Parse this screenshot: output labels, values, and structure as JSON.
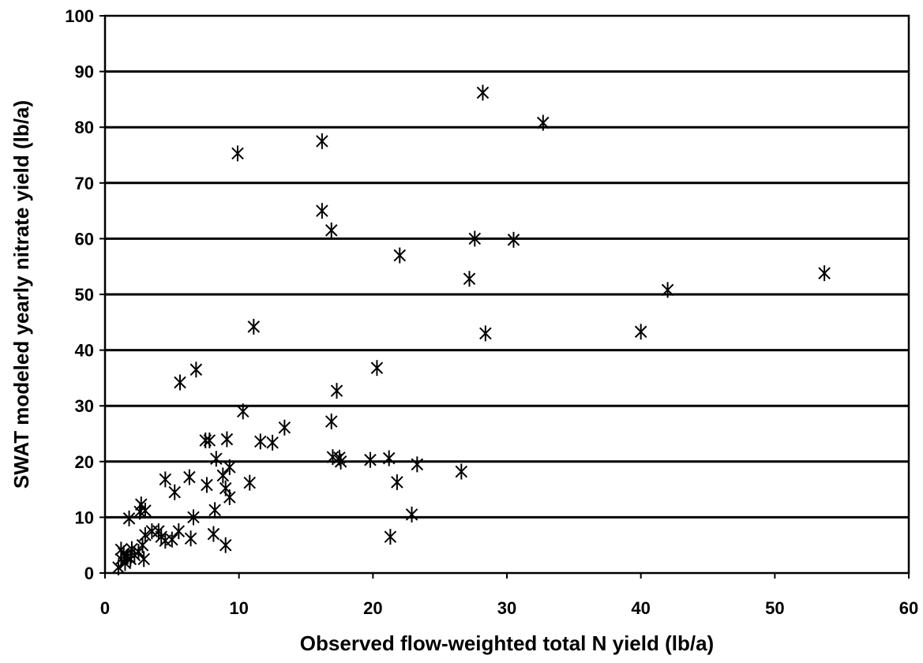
{
  "chart_data": {
    "type": "scatter",
    "xlabel": "Observed flow-weighted total N yield (lb/a)",
    "ylabel": "SWAT modeled yearly nitrate yield (lb/a)",
    "xlim": [
      0,
      60
    ],
    "ylim": [
      0,
      100
    ],
    "x_ticks": [
      "0",
      "10",
      "20",
      "30",
      "40",
      "50",
      "60"
    ],
    "y_ticks": [
      "0",
      "10",
      "20",
      "30",
      "40",
      "50",
      "60",
      "70",
      "80",
      "90",
      "100"
    ],
    "grid": "horizontal",
    "marker": "asterisk",
    "marker_color": "#000000",
    "series": [
      {
        "points": [
          [
            1.0,
            1.0
          ],
          [
            1.2,
            2.5
          ],
          [
            1.2,
            4.2
          ],
          [
            1.4,
            3.5
          ],
          [
            1.5,
            1.8
          ],
          [
            1.6,
            2.8
          ],
          [
            1.7,
            3.0
          ],
          [
            1.8,
            9.8
          ],
          [
            1.9,
            2.5
          ],
          [
            2.0,
            4.3
          ],
          [
            2.2,
            3.2
          ],
          [
            2.5,
            3.8
          ],
          [
            2.6,
            11.0
          ],
          [
            2.7,
            12.3
          ],
          [
            2.8,
            5.0
          ],
          [
            2.9,
            2.5
          ],
          [
            3.0,
            6.8
          ],
          [
            3.0,
            11.2
          ],
          [
            3.5,
            7.5
          ],
          [
            4.0,
            7.5
          ],
          [
            4.2,
            6.5
          ],
          [
            4.5,
            16.8
          ],
          [
            4.5,
            5.8
          ],
          [
            5.0,
            6.0
          ],
          [
            5.2,
            14.5
          ],
          [
            5.5,
            7.5
          ],
          [
            5.6,
            34.2
          ],
          [
            6.3,
            17.2
          ],
          [
            6.4,
            6.2
          ],
          [
            6.6,
            10.0
          ],
          [
            6.8,
            36.5
          ],
          [
            7.5,
            23.8
          ],
          [
            7.6,
            15.8
          ],
          [
            7.8,
            23.8
          ],
          [
            8.1,
            7.0
          ],
          [
            8.2,
            11.3
          ],
          [
            8.3,
            20.5
          ],
          [
            8.8,
            17.5
          ],
          [
            9.0,
            15.2
          ],
          [
            9.0,
            5.0
          ],
          [
            9.1,
            24.0
          ],
          [
            9.3,
            19.0
          ],
          [
            9.3,
            13.6
          ],
          [
            9.9,
            75.3
          ],
          [
            10.3,
            29.0
          ],
          [
            10.8,
            16.2
          ],
          [
            11.1,
            44.2
          ],
          [
            11.6,
            23.6
          ],
          [
            12.5,
            23.4
          ],
          [
            13.4,
            26.1
          ],
          [
            16.2,
            77.5
          ],
          [
            16.2,
            65.0
          ],
          [
            16.9,
            61.5
          ],
          [
            16.9,
            27.2
          ],
          [
            17.0,
            20.8
          ],
          [
            17.3,
            32.7
          ],
          [
            17.5,
            20.7
          ],
          [
            17.6,
            20.0
          ],
          [
            19.8,
            20.3
          ],
          [
            20.3,
            36.8
          ],
          [
            21.2,
            20.6
          ],
          [
            21.3,
            6.5
          ],
          [
            21.8,
            16.3
          ],
          [
            22.0,
            57.0
          ],
          [
            22.9,
            10.5
          ],
          [
            23.3,
            19.5
          ],
          [
            26.6,
            18.2
          ],
          [
            27.2,
            52.8
          ],
          [
            27.6,
            60.0
          ],
          [
            28.2,
            86.2
          ],
          [
            28.4,
            43.0
          ],
          [
            30.5,
            59.8
          ],
          [
            32.7,
            80.8
          ],
          [
            40.0,
            43.3
          ],
          [
            42.0,
            50.8
          ],
          [
            53.7,
            53.8
          ]
        ]
      }
    ]
  }
}
